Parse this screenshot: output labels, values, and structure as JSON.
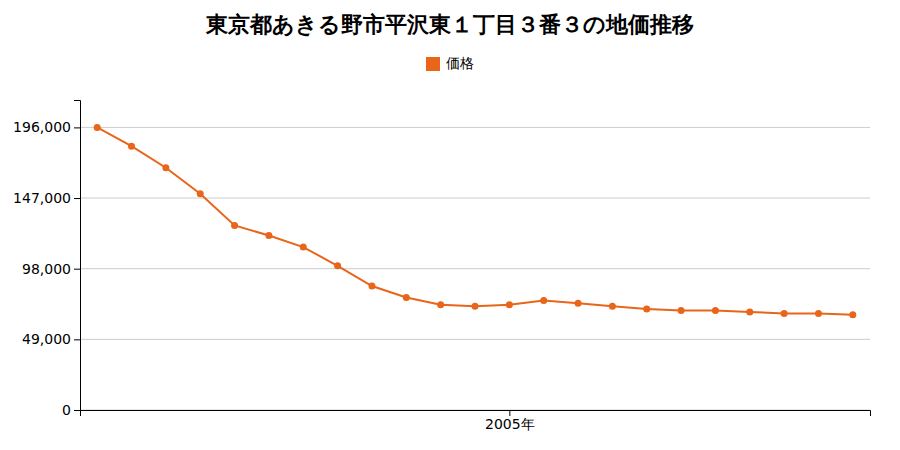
{
  "chart_data": {
    "type": "line",
    "title": "東京都あきる野市平沢東１丁目３番３の地価推移",
    "x": [
      1993,
      1994,
      1995,
      1996,
      1997,
      1998,
      1999,
      2000,
      2001,
      2002,
      2003,
      2004,
      2005,
      2006,
      2007,
      2008,
      2009,
      2010,
      2011,
      2012,
      2013,
      2014,
      2015
    ],
    "series": [
      {
        "name": "価格",
        "color": "#e8651a",
        "marker": "circle",
        "line_style": "solid",
        "values": [
          196000,
          183000,
          168000,
          150000,
          128000,
          121000,
          113000,
          100000,
          86000,
          78000,
          73000,
          72000,
          73000,
          76000,
          74000,
          72000,
          70000,
          69000,
          69000,
          68000,
          67000,
          67000,
          66000
        ]
      }
    ],
    "xlim": [
      1992.5,
      2015.5
    ],
    "xticks": [
      {
        "value": 2005,
        "label": "2005年"
      }
    ],
    "ylim": [
      0,
      215000
    ],
    "yticks": [
      0,
      {
        "value": 49000,
        "label": "49,000"
      },
      {
        "value": 98000,
        "label": "98,000"
      },
      {
        "value": 147000,
        "label": "147,000"
      },
      {
        "value": 196000,
        "label": "196,000"
      }
    ],
    "grid": true,
    "legend": "top"
  }
}
